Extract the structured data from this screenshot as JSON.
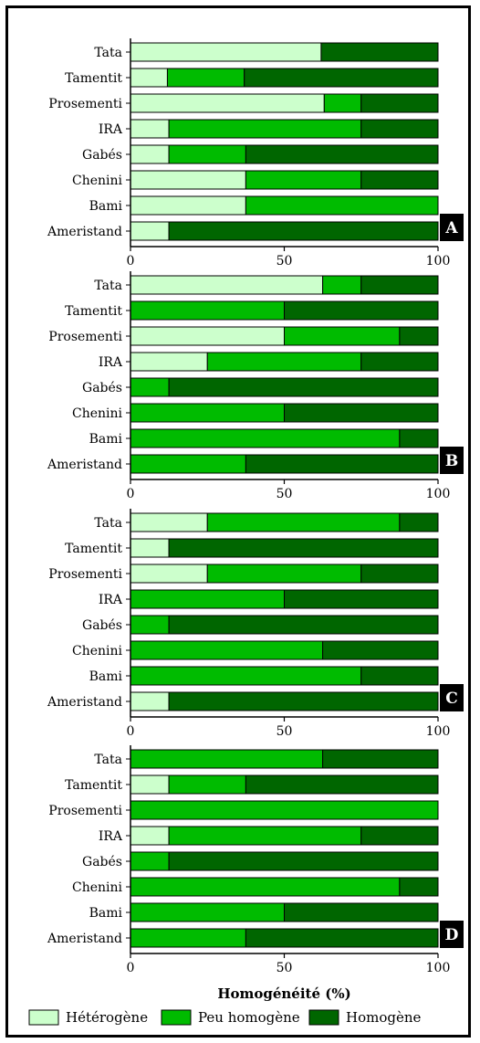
{
  "chart_data": {
    "type": "bar",
    "orientation": "horizontal",
    "stacked": true,
    "categories": [
      "Tata",
      "Tamentit",
      "Prosementi",
      "IRA",
      "Gabés",
      "Chenini",
      "Bami",
      "Ameristand"
    ],
    "xlabel": "Homogénéité (%)",
    "xlim": [
      0,
      100
    ],
    "xticks": [
      "0",
      "50",
      "100"
    ],
    "colors": {
      "Hétérogène": "#ccffcc",
      "Peu homogène": "#00bb00",
      "Homogène": "#006600"
    },
    "legend": [
      "Hétérogène",
      "Peu homogène",
      "Homogène"
    ],
    "legend_position": "bottom",
    "panels": [
      {
        "label": "A",
        "series": [
          {
            "name": "Hétérogène",
            "values": [
              62,
              12,
              63,
              12.5,
              12.5,
              37.5,
              37.5,
              12.5
            ]
          },
          {
            "name": "Peu homogène",
            "values": [
              0,
              25,
              12,
              62.5,
              25,
              37.5,
              62.5,
              0
            ]
          },
          {
            "name": "Homogène",
            "values": [
              38,
              63,
              25,
              25,
              62.5,
              25,
              0,
              87.5
            ]
          }
        ]
      },
      {
        "label": "B",
        "series": [
          {
            "name": "Hétérogène",
            "values": [
              62.5,
              0,
              50,
              25,
              0,
              0,
              0,
              0
            ]
          },
          {
            "name": "Peu homogène",
            "values": [
              12.5,
              50,
              37.5,
              50,
              12.5,
              50,
              87.5,
              37.5
            ]
          },
          {
            "name": "Homogène",
            "values": [
              25,
              50,
              12.5,
              25,
              87.5,
              50,
              12.5,
              62.5
            ]
          }
        ]
      },
      {
        "label": "C",
        "series": [
          {
            "name": "Hétérogène",
            "values": [
              25,
              12.5,
              25,
              0,
              0,
              0,
              0,
              12.5
            ]
          },
          {
            "name": "Peu homogène",
            "values": [
              62.5,
              0,
              50,
              50,
              12.5,
              62.5,
              75,
              0
            ]
          },
          {
            "name": "Homogène",
            "values": [
              12.5,
              87.5,
              25,
              50,
              87.5,
              37.5,
              25,
              87.5
            ]
          }
        ]
      },
      {
        "label": "D",
        "series": [
          {
            "name": "Hétérogène",
            "values": [
              0,
              12.5,
              0,
              12.5,
              0,
              0,
              0,
              0
            ]
          },
          {
            "name": "Peu homogène",
            "values": [
              62.5,
              25,
              100,
              62.5,
              12.5,
              87.5,
              50,
              37.5
            ]
          },
          {
            "name": "Homogène",
            "values": [
              37.5,
              62.5,
              0,
              25,
              87.5,
              12.5,
              50,
              62.5
            ]
          }
        ]
      }
    ]
  }
}
